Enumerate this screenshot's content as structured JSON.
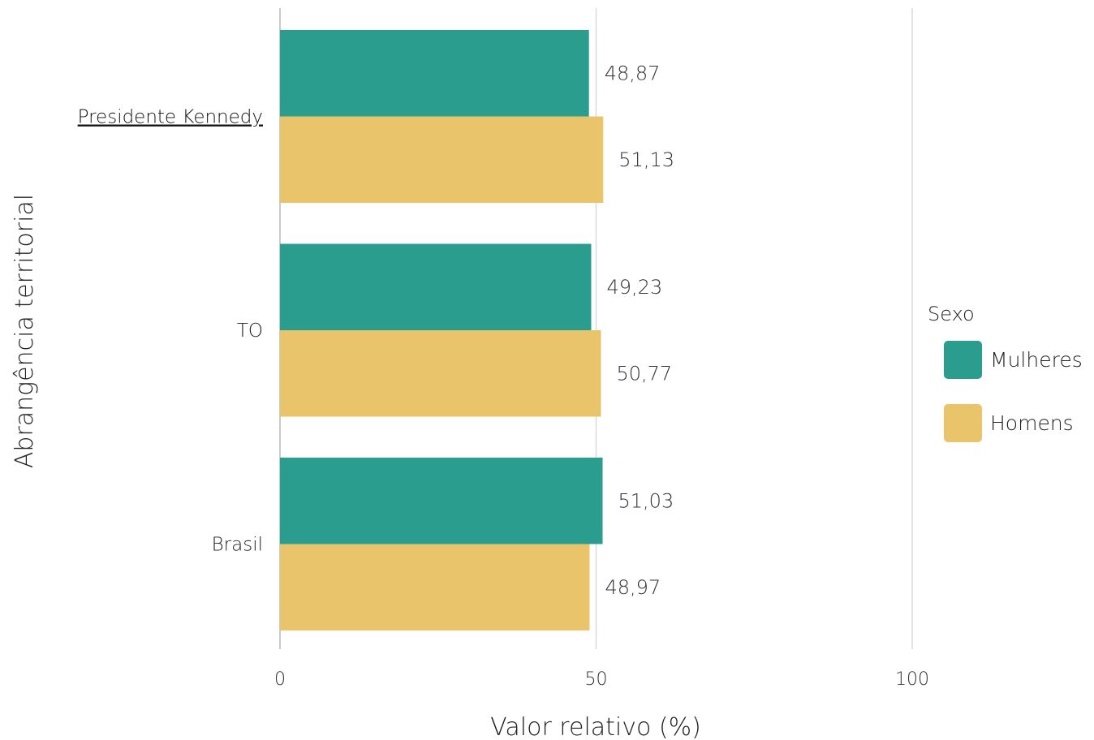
{
  "chart_data": {
    "type": "bar",
    "orientation": "horizontal",
    "categories": [
      "Presidente Kennedy",
      "TO",
      "Brasil"
    ],
    "highlight_category": "Presidente Kennedy",
    "series": [
      {
        "name": "Mulheres",
        "color": "#2a9d8f",
        "values": [
          48.87,
          49.23,
          51.03
        ],
        "labels": [
          "48,87",
          "49,23",
          "51,03"
        ]
      },
      {
        "name": "Homens",
        "color": "#e9c46a",
        "values": [
          51.13,
          50.77,
          48.97
        ],
        "labels": [
          "51,13",
          "50,77",
          "48,97"
        ]
      }
    ],
    "xlabel": "Valor relativo (%)",
    "ylabel": "Abrangência territorial",
    "xlim": [
      0,
      100
    ],
    "xticks": [
      0,
      50,
      100
    ],
    "grid": true,
    "legend": {
      "title": "Sexo",
      "position": "right"
    }
  }
}
